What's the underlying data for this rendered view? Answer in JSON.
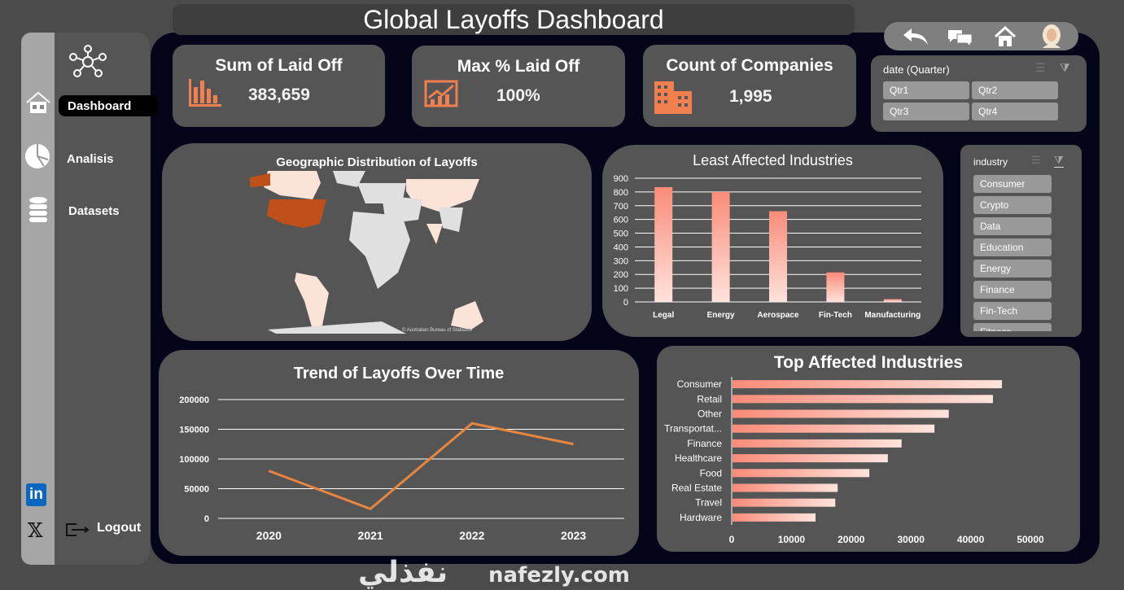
{
  "title": "Global Layoffs Dashboard",
  "sidebar": {
    "items": [
      {
        "label": "Dashboard",
        "icon": "home-icon",
        "active": true
      },
      {
        "label": "Analisis",
        "icon": "pie-chart-icon"
      },
      {
        "label": "Datasets",
        "icon": "database-icon"
      }
    ],
    "logout": "Logout",
    "social": [
      "linkedin-icon",
      "x-icon"
    ]
  },
  "topnav": {
    "icons": [
      "back-arrow-icon",
      "chat-icon",
      "home-icon",
      "avatar"
    ]
  },
  "kpis": [
    {
      "title": "Sum of Laid Off",
      "value": "383,659"
    },
    {
      "title": "Max % Laid Off",
      "value": "100%"
    },
    {
      "title": "Count of Companies",
      "value": "1,995"
    }
  ],
  "date_slicer": {
    "title": "date (Quarter)",
    "items": [
      "Qtr1",
      "Qtr2",
      "Qtr3",
      "Qtr4"
    ]
  },
  "industry_slicer": {
    "title": "industry",
    "items": [
      "Consumer",
      "Crypto",
      "Data",
      "Education",
      "Energy",
      "Finance",
      "Fin-Tech",
      "Fitness"
    ]
  },
  "map": {
    "title": "Geographic Distribution of Layoffs",
    "attribution": "© Australian Bureau of Statistics",
    "highlight": "United States",
    "colors": {
      "high": "#c0501a",
      "low": "#fbe3d8",
      "none": "#e0e0e0"
    }
  },
  "colors": {
    "accent": "#f08050",
    "bar": "#f9968a",
    "line": "#e8863e"
  },
  "chart_data": [
    {
      "type": "bar",
      "title": "Least Affected Industries",
      "categories": [
        "Legal",
        "Energy",
        "Aerospace",
        "Fin-Tech",
        "Manufacturing"
      ],
      "values": [
        835,
        800,
        660,
        215,
        20
      ],
      "ylim": [
        0,
        900
      ],
      "yticks": [
        0,
        100,
        200,
        300,
        400,
        500,
        600,
        700,
        800,
        900
      ],
      "grid": true
    },
    {
      "type": "line",
      "title": "Trend of Layoffs Over Time",
      "categories": [
        "2020",
        "2021",
        "2022",
        "2023"
      ],
      "values": [
        80000,
        16000,
        160000,
        125000
      ],
      "ylim": [
        0,
        200000
      ],
      "yticks": [
        0,
        50000,
        100000,
        150000,
        200000
      ],
      "grid": true
    },
    {
      "type": "bar",
      "orientation": "horizontal",
      "title": "Top Affected Industries",
      "categories": [
        "Consumer",
        "Retail",
        "Other",
        "Transportat...",
        "Finance",
        "Healthcare",
        "Food",
        "Real Estate",
        "Travel",
        "Hardware"
      ],
      "values": [
        45100,
        43600,
        36200,
        33800,
        28300,
        26000,
        22900,
        17600,
        17200,
        13900
      ],
      "xlim": [
        0,
        50000
      ],
      "xticks": [
        0,
        10000,
        20000,
        30000,
        40000,
        50000
      ],
      "grid": false
    }
  ],
  "watermark": {
    "arabic": "نفذلي",
    "latin": "nafezly.com"
  }
}
